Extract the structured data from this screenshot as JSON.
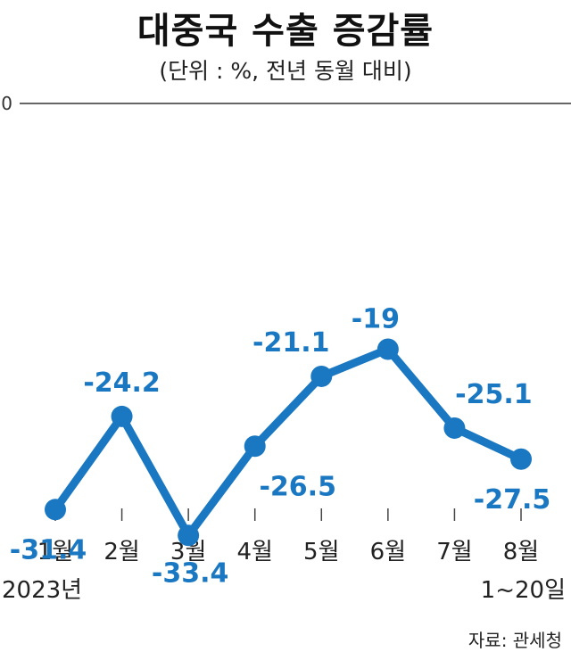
{
  "header": {
    "title": "대중국 수출 증감률",
    "subtitle": "(단위 : %, 전년 동월 대비)"
  },
  "chart_data": {
    "type": "line",
    "title": "대중국 수출 증감률",
    "subtitle": "(단위 : %, 전년 동월 대비)",
    "categories": [
      "1월",
      "2월",
      "3월",
      "4월",
      "5월",
      "6월",
      "7월",
      "8월"
    ],
    "category_sublabels": {
      "first": "2023년",
      "last": "1~20일"
    },
    "series": [
      {
        "values": [
          -31.4,
          -24.2,
          -33.4,
          -26.5,
          -21.1,
          -19,
          -25.1,
          -27.5
        ]
      }
    ],
    "value_labels": [
      "-31.4",
      "-24.2",
      "-33.4",
      "-26.5",
      "-21.1",
      "-19",
      "-25.1",
      "-27.5"
    ],
    "y_tick_labels": [
      "0"
    ],
    "ylim": [
      -50,
      0
    ],
    "grid": false,
    "line_color": "#1a78c2",
    "label_color": "#1a78c2"
  },
  "footer": {
    "source": "자료: 관세청"
  }
}
